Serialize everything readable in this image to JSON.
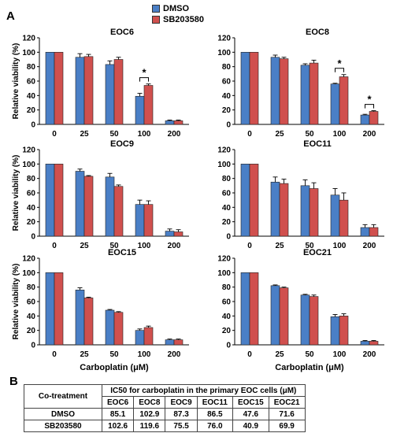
{
  "panel_a_label": "A",
  "panel_b_label": "B",
  "legend": [
    {
      "name": "DMSO",
      "color": "#4a7fc6"
    },
    {
      "name": "SB203580",
      "color": "#d0504e"
    }
  ],
  "colors": {
    "dmso": "#4a7fc6",
    "sb": "#d0504e"
  },
  "chart_data": [
    {
      "type": "bar",
      "title": "EOC6",
      "categories": [
        "0",
        "25",
        "50",
        "100",
        "200"
      ],
      "ylabel": "Relative viability (%)",
      "xlabel": "",
      "ylim": [
        0,
        120
      ],
      "yticks": [
        "0",
        "20",
        "40",
        "60",
        "80",
        "100",
        "120"
      ],
      "series": [
        {
          "name": "DMSO",
          "values": [
            100,
            93,
            83,
            39,
            5
          ],
          "errors": [
            0,
            5,
            5,
            4,
            1
          ]
        },
        {
          "name": "SB203580",
          "values": [
            100,
            94,
            90,
            54,
            5
          ],
          "errors": [
            0,
            3,
            3,
            2,
            1
          ]
        }
      ],
      "significance": [
        {
          "category": "100",
          "label": "*"
        }
      ]
    },
    {
      "type": "bar",
      "title": "EOC8",
      "categories": [
        "0",
        "25",
        "50",
        "100",
        "200"
      ],
      "ylabel": "",
      "xlabel": "",
      "ylim": [
        0,
        120
      ],
      "yticks": [
        "0",
        "20",
        "40",
        "60",
        "80",
        "100",
        "120"
      ],
      "series": [
        {
          "name": "DMSO",
          "values": [
            100,
            93,
            82,
            56,
            13
          ],
          "errors": [
            0,
            3,
            2,
            1,
            1
          ]
        },
        {
          "name": "SB203580",
          "values": [
            100,
            91,
            85,
            66,
            18
          ],
          "errors": [
            0,
            2,
            4,
            3,
            1
          ]
        }
      ],
      "significance": [
        {
          "category": "100",
          "label": "*"
        },
        {
          "category": "200",
          "label": "*"
        }
      ]
    },
    {
      "type": "bar",
      "title": "EOC9",
      "categories": [
        "0",
        "25",
        "50",
        "100",
        "200"
      ],
      "ylabel": "Relative viability (%)",
      "xlabel": "",
      "ylim": [
        0,
        120
      ],
      "yticks": [
        "0",
        "20",
        "40",
        "60",
        "80",
        "100",
        "120"
      ],
      "series": [
        {
          "name": "DMSO",
          "values": [
            100,
            90,
            82,
            44,
            7
          ],
          "errors": [
            0,
            3,
            5,
            6,
            3
          ]
        },
        {
          "name": "SB203580",
          "values": [
            100,
            83,
            69,
            44,
            6
          ],
          "errors": [
            0,
            1,
            2,
            5,
            3
          ]
        }
      ],
      "significance": []
    },
    {
      "type": "bar",
      "title": "EOC11",
      "categories": [
        "0",
        "25",
        "50",
        "100",
        "200"
      ],
      "ylabel": "",
      "xlabel": "",
      "ylim": [
        0,
        120
      ],
      "yticks": [
        "0",
        "20",
        "40",
        "60",
        "80",
        "100",
        "120"
      ],
      "series": [
        {
          "name": "DMSO",
          "values": [
            100,
            75,
            70,
            57,
            12
          ],
          "errors": [
            0,
            7,
            8,
            9,
            4
          ]
        },
        {
          "name": "SB203580",
          "values": [
            100,
            73,
            66,
            50,
            12
          ],
          "errors": [
            0,
            6,
            8,
            10,
            4
          ]
        }
      ],
      "significance": []
    },
    {
      "type": "bar",
      "title": "EOC15",
      "categories": [
        "0",
        "25",
        "50",
        "100",
        "200"
      ],
      "ylabel": "Relative viability (%)",
      "xlabel": "Carboplatin (μM)",
      "ylim": [
        0,
        120
      ],
      "yticks": [
        "0",
        "20",
        "40",
        "60",
        "80",
        "100",
        "120"
      ],
      "series": [
        {
          "name": "DMSO",
          "values": [
            100,
            76,
            48,
            20,
            7
          ],
          "errors": [
            0,
            3,
            1,
            2,
            1
          ]
        },
        {
          "name": "SB203580",
          "values": [
            100,
            65,
            45,
            24,
            7
          ],
          "errors": [
            0,
            1,
            1,
            2,
            1
          ]
        }
      ],
      "significance": []
    },
    {
      "type": "bar",
      "title": "EOC21",
      "categories": [
        "0",
        "25",
        "50",
        "100",
        "200"
      ],
      "ylabel": "",
      "xlabel": "Carboplatin (μM)",
      "ylim": [
        0,
        120
      ],
      "yticks": [
        "0",
        "20",
        "40",
        "60",
        "80",
        "100",
        "120"
      ],
      "series": [
        {
          "name": "DMSO",
          "values": [
            100,
            82,
            69,
            39,
            5
          ],
          "errors": [
            0,
            1,
            1,
            3,
            1
          ]
        },
        {
          "name": "SB203580",
          "values": [
            100,
            79,
            67,
            40,
            5
          ],
          "errors": [
            0,
            1,
            2,
            3,
            1
          ]
        }
      ],
      "significance": []
    }
  ],
  "table": {
    "corner": "Co-treatment",
    "group_header": "IC50 for carboplatin in the primary EOC cells (μM)",
    "columns": [
      "EOC6",
      "EOC8",
      "EOC9",
      "EOC11",
      "EOC15",
      "EOC21"
    ],
    "rows": [
      {
        "label": "DMSO",
        "values": [
          "85.1",
          "102.9",
          "87.3",
          "86.5",
          "47.6",
          "71.6"
        ]
      },
      {
        "label": "SB203580",
        "values": [
          "102.6",
          "119.6",
          "75.5",
          "76.0",
          "40.9",
          "69.9"
        ]
      }
    ]
  }
}
